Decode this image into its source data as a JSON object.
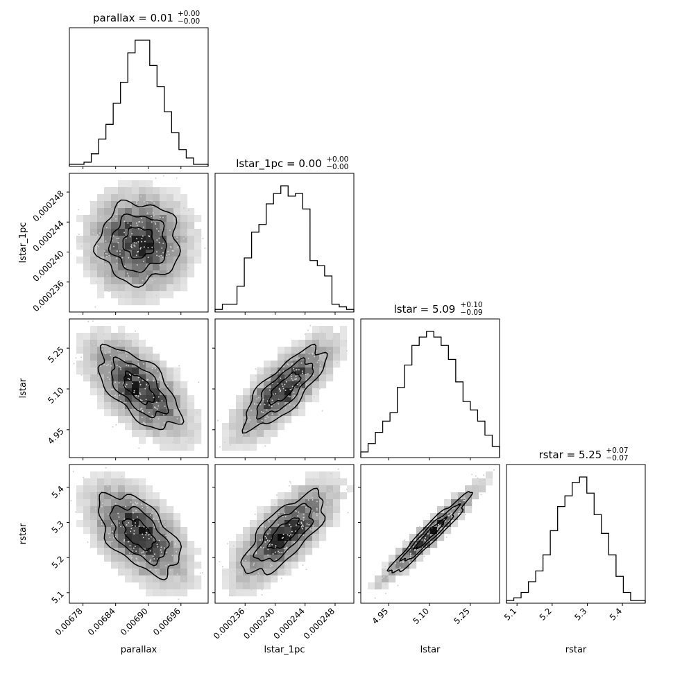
{
  "chart_data": {
    "type": "corner",
    "parameters": [
      "parallax",
      "lstar_1pc",
      "lstar",
      "rstar"
    ],
    "axis_labels": [
      "parallax",
      "lstar_1pc",
      "lstar",
      "rstar"
    ],
    "ranges": [
      [
        0.006755,
        0.00701
      ],
      [
        0.000232,
        0.0002505
      ],
      [
        4.8475,
        5.3575
      ],
      [
        5.07,
        5.465
      ]
    ],
    "ticks": [
      {
        "values": [
          0.00678,
          0.00684,
          0.0069,
          0.00696
        ],
        "labels": [
          "0.00678",
          "0.00684",
          "0.00690",
          "0.00696"
        ]
      },
      {
        "values": [
          0.000236,
          0.00024,
          0.000244,
          0.000248
        ],
        "labels": [
          "0.000236",
          "0.000240",
          "0.000244",
          "0.000248"
        ]
      },
      {
        "values": [
          4.95,
          5.1,
          5.25
        ],
        "labels": [
          "4.95",
          "5.10",
          "5.25"
        ]
      },
      {
        "values": [
          5.1,
          5.2,
          5.3,
          5.4
        ],
        "labels": [
          "5.1",
          "5.2",
          "5.3",
          "5.4"
        ]
      }
    ],
    "titles": [
      {
        "name": "parallax",
        "median": "0.01",
        "plus": "+0.00",
        "minus": "−0.00"
      },
      {
        "name": "lstar_1pc",
        "median": "0.00",
        "plus": "+0.00",
        "minus": "−0.00"
      },
      {
        "name": "lstar",
        "median": "5.09",
        "plus": "+0.10",
        "minus": "−0.09"
      },
      {
        "name": "rstar",
        "median": "5.25",
        "plus": "+0.07",
        "minus": "−0.07"
      }
    ],
    "title_separator": " = ",
    "histograms": [
      [
        1,
        1,
        2,
        6,
        13,
        20,
        30,
        40,
        54,
        60,
        60,
        48,
        38,
        26,
        16,
        8,
        4,
        1,
        1
      ],
      [
        1,
        3,
        3,
        10,
        21,
        31,
        34,
        42,
        46,
        49,
        45,
        46,
        40,
        20,
        18,
        14,
        3,
        2,
        1
      ],
      [
        2,
        5,
        9,
        13,
        16,
        25,
        33,
        40,
        43,
        45,
        43,
        40,
        35,
        27,
        20,
        17,
        13,
        8,
        4
      ],
      [
        1,
        2,
        4,
        8,
        12,
        18,
        27,
        36,
        40,
        45,
        47,
        41,
        33,
        26,
        18,
        10,
        4,
        1,
        1
      ]
    ],
    "correlations": {
      "lstar_1pc|parallax": 0.0,
      "lstar|parallax": -0.62,
      "lstar|lstar_1pc": 0.78,
      "rstar|parallax": -0.55,
      "rstar|lstar_1pc": 0.72,
      "rstar|lstar": 0.96
    },
    "grid": false,
    "legend": "none"
  }
}
